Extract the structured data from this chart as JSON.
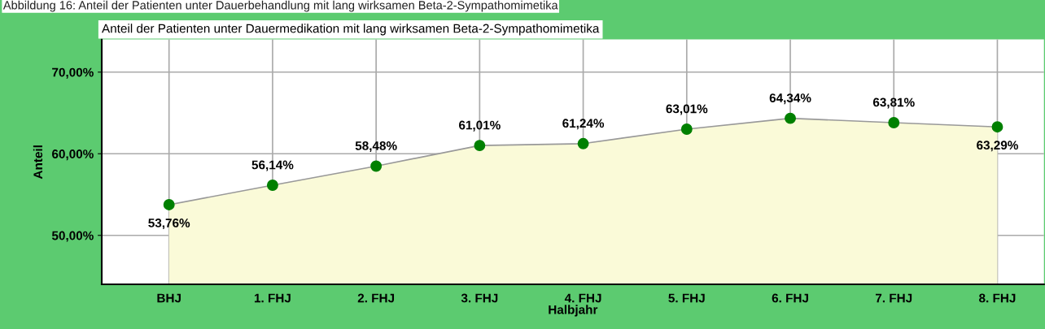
{
  "chart_data": {
    "type": "area",
    "title": "Anteil der Patienten unter Dauermedikation mit lang wirksamen Beta-2-Sympathomimetika",
    "annotations": [
      "Abbildung 16: Anteil der Patienten unter Dauerbehandlung mit lang wirksamen Beta-2-Sympathomimetika"
    ],
    "xlabel": "Halbjahr",
    "ylabel": "Anteil",
    "categories": [
      "BHJ",
      "1. FHJ",
      "2. FHJ",
      "3. FHJ",
      "4. FHJ",
      "5. FHJ",
      "6. FHJ",
      "7. FHJ",
      "8. FHJ"
    ],
    "series": [
      {
        "color": "#fafad8",
        "colors": [
          "#008000",
          "#008000",
          "#008000",
          "#008000",
          "#008000",
          "#008000",
          "#008000",
          "#008000",
          "#008000"
        ],
        "values": [
          53.76,
          56.14,
          58.48,
          61.01,
          61.24,
          63.01,
          64.34,
          63.81,
          63.29
        ],
        "value_labels": [
          "53,76%",
          "56,14%",
          "58,48%",
          "61,01%",
          "61,24%",
          "63,01%",
          "64,34%",
          "63,81%",
          "63,29%"
        ]
      }
    ],
    "ylim": [
      44,
      74
    ],
    "yticks": [
      {
        "value": 50,
        "label": "50,00%"
      },
      {
        "value": 60,
        "label": "60,00%"
      },
      {
        "value": 70,
        "label": "70,00%"
      }
    ],
    "grid": true,
    "marker": "circle",
    "legend": false
  }
}
